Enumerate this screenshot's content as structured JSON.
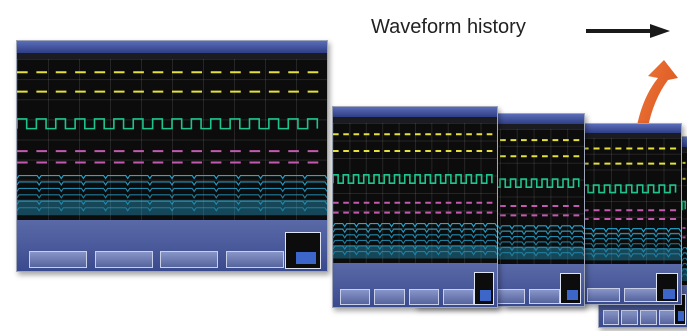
{
  "caption": {
    "text": "Waveform history"
  },
  "icons": {
    "arrow": "right-arrow-icon",
    "curve": "curved-arrow-icon"
  },
  "colors": {
    "background": "#ffffff",
    "arrow": "#1a1a1a",
    "curve": "#e8541a",
    "frame_border": "#9ea6b8",
    "screen": "#0c0c0c",
    "trace_yellow": "#e4e23a",
    "trace_green": "#1fc48a",
    "trace_magenta": "#c45ab0",
    "trace_cyan": "#28b8e8"
  },
  "frames": [
    {
      "id": "frame-1"
    },
    {
      "id": "frame-2"
    },
    {
      "id": "frame-3"
    },
    {
      "id": "frame-4"
    },
    {
      "id": "frame-5"
    }
  ]
}
